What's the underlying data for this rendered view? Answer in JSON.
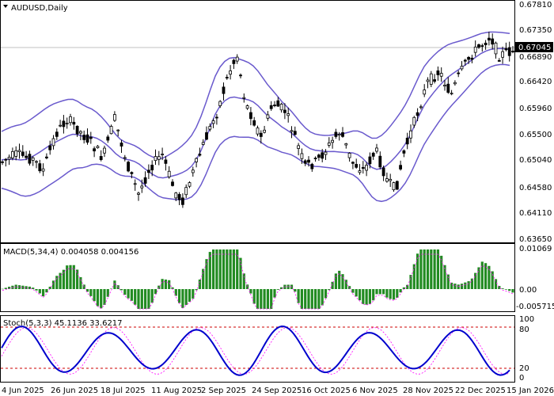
{
  "symbol_title": "AUDUSD,Daily",
  "colors": {
    "bull": "#000000",
    "bear": "#000000",
    "band": "#6a5acd",
    "price_line": "#c0c0c0",
    "macd_hist": "#228b22",
    "macd_signal": "#ff00ff",
    "stoch_main": "#0000cd",
    "stoch_signal": "#ff00ff",
    "level_line": "#cc0000",
    "current_bg": "#000000",
    "current_fg": "#ffffff"
  },
  "chart_data": [
    {
      "type": "candlestick",
      "name": "main",
      "title": "AUDUSD,Daily",
      "ylim": [
        0.6365,
        0.679
      ],
      "current_price": 0.67045,
      "yticks": [
        "0.67810",
        "0.67350",
        "0.66890",
        "0.66420",
        "0.65960",
        "0.65500",
        "0.65040",
        "0.64580",
        "0.64110",
        "0.63650"
      ],
      "xticks": [
        "4 Jun 2025",
        "26 Jun 2025",
        "18 Jul 2025",
        "11 Aug 2025",
        "2 Sep 2025",
        "24 Sep 2025",
        "16 Oct 2025",
        "6 Nov 2025",
        "28 Nov 2025",
        "22 Dec 2025",
        "15 Jan 2026"
      ],
      "indicator": "Bollinger Bands"
    },
    {
      "type": "macd",
      "name": "MACD(5,34,4)",
      "title": "MACD(5,34,4) 0.004058 0.004156",
      "values": [
        "0.004058",
        "0.004156"
      ],
      "ylim": [
        -0.0062,
        0.0112
      ],
      "yticks": [
        "0.01069",
        "0.00",
        "-0.005715"
      ]
    },
    {
      "type": "stochastic",
      "name": "Stoch(5,3,3)",
      "title": "Stoch(5,3,3) 45.1136 33.6217",
      "values": [
        "45.1136",
        "33.6217"
      ],
      "ylim": [
        0,
        100
      ],
      "levels": [
        20,
        80
      ],
      "yticks": [
        "100",
        "80",
        "20",
        "0"
      ]
    }
  ]
}
